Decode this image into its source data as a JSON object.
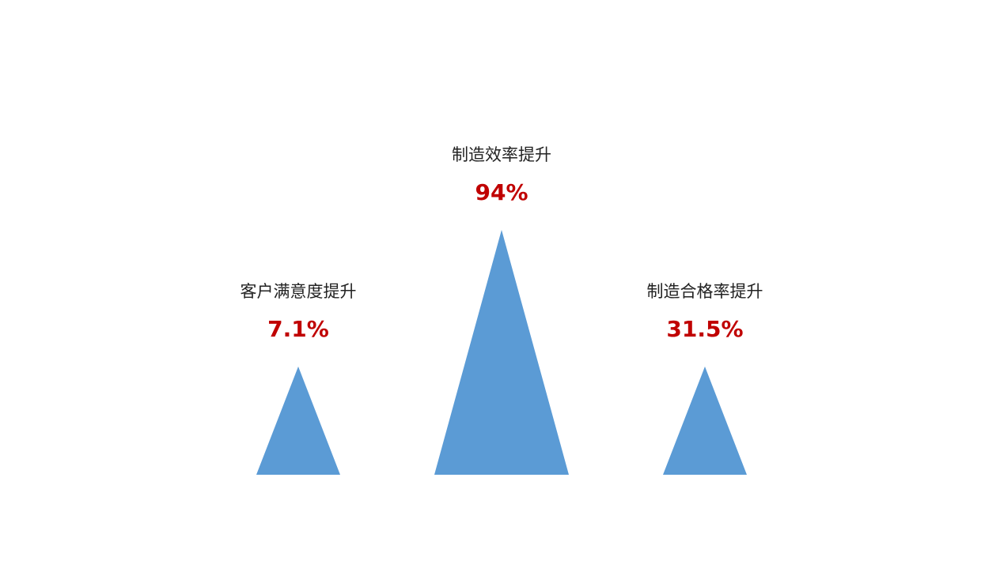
{
  "chart_data": {
    "type": "bar",
    "shape": "triangle",
    "categories": [
      "客户满意度提升",
      "制造效率提升",
      "制造合格率提升"
    ],
    "values": [
      7.1,
      94,
      31.5
    ],
    "value_labels": [
      "7.1%",
      "94%",
      "31.5%"
    ],
    "title": "",
    "xlabel": "",
    "ylabel": "",
    "grid": false,
    "legend": "none"
  },
  "colors": {
    "bar": "#5b9bd5",
    "value_text": "#c00000",
    "label_text": "#222222",
    "background": "#ffffff"
  }
}
